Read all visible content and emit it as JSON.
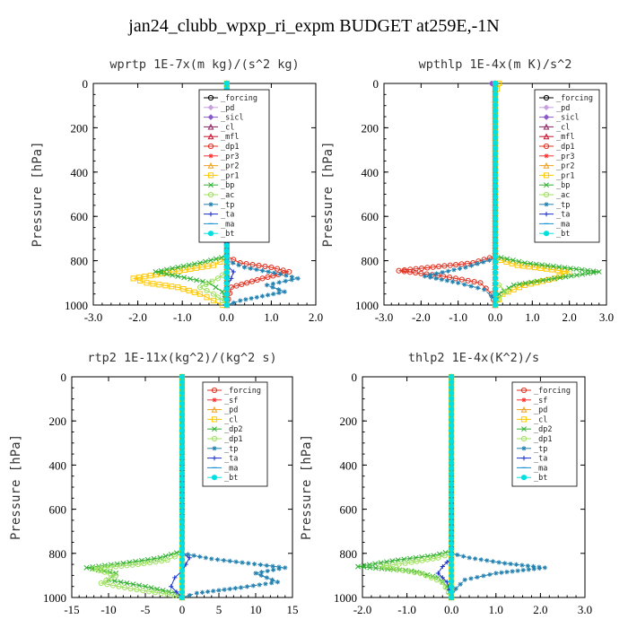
{
  "title": "jan24_clubb_wpxp_ri_expm  BUDGET at259E,-1N",
  "chart_data": [
    {
      "type": "line",
      "title": "wprtp  1E-7x(m kg)/(s^2 kg)",
      "ylabel": "Pressure [hPa]",
      "xlim": [
        -3,
        2
      ],
      "ylim": [
        1000,
        0
      ],
      "xticks": [
        "-3.0",
        "-2.0",
        "-1.0",
        "0.0",
        "1.0",
        "2.0"
      ],
      "yticks": [
        "0",
        "200",
        "400",
        "600",
        "800",
        "1000"
      ],
      "legend": "top-right",
      "series": [
        {
          "name": "_forcing",
          "color": "#000000",
          "marker": "circle",
          "x": [
            0,
            0,
            0,
            0,
            0,
            0,
            0,
            0,
            0,
            0
          ],
          "y": [
            0,
            100,
            200,
            300,
            400,
            500,
            600,
            700,
            800,
            1000
          ]
        },
        {
          "name": "_pd",
          "color": "#c8a0e0",
          "marker": "diamond",
          "x": [
            0,
            0
          ],
          "y": [
            0,
            1000
          ]
        },
        {
          "name": "_sicl",
          "color": "#8a5ac8",
          "marker": "diamond",
          "x": [
            0,
            0
          ],
          "y": [
            0,
            1000
          ]
        },
        {
          "name": "_cl",
          "color": "#8b2060",
          "marker": "triangle",
          "x": [
            0,
            0
          ],
          "y": [
            0,
            1000
          ]
        },
        {
          "name": "_mfl",
          "color": "#c8102e",
          "marker": "triangle",
          "x": [
            0,
            0
          ],
          "y": [
            0,
            1000
          ]
        },
        {
          "name": "_dp1",
          "color": "#e03020",
          "marker": "circle",
          "x": [
            0,
            0,
            0.3,
            1.0,
            1.4,
            0.8,
            0.1,
            0
          ],
          "y": [
            0,
            780,
            810,
            830,
            850,
            880,
            920,
            1000
          ]
        },
        {
          "name": "_pr3",
          "color": "#ff3030",
          "marker": "star",
          "x": [
            0,
            0
          ],
          "y": [
            0,
            1000
          ]
        },
        {
          "name": "_pr2",
          "color": "#f0a020",
          "marker": "triangle",
          "x": [
            0,
            0
          ],
          "y": [
            0,
            1000
          ]
        },
        {
          "name": "_pr1",
          "color": "#ffc800",
          "marker": "square",
          "x": [
            0,
            0,
            -0.3,
            -1.2,
            -2.1,
            -1.8,
            -1.1,
            -0.6,
            -0.3,
            -0.1
          ],
          "y": [
            0,
            790,
            820,
            850,
            880,
            900,
            920,
            950,
            980,
            1000
          ]
        },
        {
          "name": "_bp",
          "color": "#30b030",
          "marker": "cross",
          "x": [
            0,
            0,
            -0.6,
            -1.6,
            -1.1,
            -0.4,
            -0.1,
            0
          ],
          "y": [
            0,
            780,
            810,
            850,
            870,
            900,
            940,
            1000
          ]
        },
        {
          "name": "_ac",
          "color": "#a0e060",
          "marker": "circle",
          "x": [
            0,
            0,
            -0.2,
            -0.6,
            -0.3,
            -0.1,
            0
          ],
          "y": [
            0,
            850,
            880,
            920,
            950,
            980,
            1000
          ]
        },
        {
          "name": "_tp",
          "color": "#2080b0",
          "marker": "star",
          "x": [
            0,
            0,
            0.4,
            1.2,
            1.6,
            0.9,
            1.3,
            0.8,
            0.3,
            0
          ],
          "y": [
            0,
            800,
            830,
            860,
            880,
            910,
            940,
            960,
            980,
            1000
          ]
        },
        {
          "name": "_ta",
          "color": "#1a30c8",
          "marker": "plus",
          "x": [
            0,
            0,
            0.15,
            0.1,
            0,
            0
          ],
          "y": [
            0,
            820,
            850,
            880,
            920,
            1000
          ]
        },
        {
          "name": "_ma",
          "color": "#1890d0",
          "marker": "dash",
          "x": [
            0,
            0
          ],
          "y": [
            0,
            1000
          ]
        },
        {
          "name": "_bt",
          "color": "#00e0e0",
          "marker": "dot",
          "x": [
            0,
            0
          ],
          "y": [
            0,
            1000
          ]
        }
      ]
    },
    {
      "type": "line",
      "title": "wpthlp  1E-4x(m K)/s^2",
      "ylabel": "Pressure [hPa]",
      "xlim": [
        -3,
        3
      ],
      "ylim": [
        1000,
        0
      ],
      "xticks": [
        "-3.0",
        "-2.0",
        "-1.0",
        "0.0",
        "1.0",
        "2.0",
        "3.0"
      ],
      "yticks": [
        "0",
        "200",
        "400",
        "600",
        "800",
        "1000"
      ],
      "legend": "top-right",
      "series": [
        {
          "name": "_forcing",
          "color": "#000000",
          "marker": "circle",
          "x": [
            0,
            0
          ],
          "y": [
            0,
            1000
          ]
        },
        {
          "name": "_pd",
          "color": "#c8a0e0",
          "marker": "diamond",
          "x": [
            0,
            0
          ],
          "y": [
            0,
            1000
          ]
        },
        {
          "name": "_sicl",
          "color": "#8a5ac8",
          "marker": "diamond",
          "x": [
            -0.1,
            0,
            0
          ],
          "y": [
            0,
            40,
            1000
          ]
        },
        {
          "name": "_cl",
          "color": "#8b2060",
          "marker": "triangle",
          "x": [
            0,
            0
          ],
          "y": [
            0,
            1000
          ]
        },
        {
          "name": "_mfl",
          "color": "#c8102e",
          "marker": "triangle",
          "x": [
            0,
            0
          ],
          "y": [
            0,
            1000
          ]
        },
        {
          "name": "_dp1",
          "color": "#e03020",
          "marker": "circle",
          "x": [
            0,
            0,
            -0.6,
            -2.6,
            -1.4,
            -0.4,
            -0.1,
            0
          ],
          "y": [
            0,
            780,
            810,
            845,
            870,
            900,
            950,
            1000
          ]
        },
        {
          "name": "_pr3",
          "color": "#ff3030",
          "marker": "star",
          "x": [
            0,
            0
          ],
          "y": [
            0,
            1000
          ]
        },
        {
          "name": "_pr2",
          "color": "#f0a020",
          "marker": "triangle",
          "x": [
            0,
            0
          ],
          "y": [
            0,
            1000
          ]
        },
        {
          "name": "_pr1",
          "color": "#ffc800",
          "marker": "square",
          "x": [
            0.1,
            0,
            0,
            0.6,
            2.0,
            1.6,
            0.8,
            0.2,
            0
          ],
          "y": [
            0,
            50,
            790,
            820,
            850,
            880,
            910,
            950,
            1000
          ]
        },
        {
          "name": "_bp",
          "color": "#30b030",
          "marker": "cross",
          "x": [
            0,
            0,
            0.8,
            2.8,
            1.6,
            0.5,
            0.1,
            0
          ],
          "y": [
            0,
            780,
            810,
            850,
            880,
            910,
            950,
            1000
          ]
        },
        {
          "name": "_ac",
          "color": "#a0e060",
          "marker": "circle",
          "x": [
            0,
            0,
            0.1,
            0.3,
            0.1,
            0
          ],
          "y": [
            0,
            880,
            910,
            940,
            970,
            1000
          ]
        },
        {
          "name": "_tp",
          "color": "#2080b0",
          "marker": "star",
          "x": [
            0,
            0,
            -0.8,
            -1.9,
            -1.0,
            -0.3,
            -0.1,
            0
          ],
          "y": [
            0,
            790,
            830,
            870,
            900,
            930,
            960,
            1000
          ]
        },
        {
          "name": "_ta",
          "color": "#1a30c8",
          "marker": "plus",
          "x": [
            0,
            0
          ],
          "y": [
            0,
            1000
          ]
        },
        {
          "name": "_ma",
          "color": "#1890d0",
          "marker": "dash",
          "x": [
            0,
            0
          ],
          "y": [
            0,
            1000
          ]
        },
        {
          "name": "_bt",
          "color": "#00e0e0",
          "marker": "dot",
          "x": [
            0,
            0
          ],
          "y": [
            0,
            1000
          ]
        }
      ]
    },
    {
      "type": "line",
      "title": "rtp2  1E-11x(kg^2)/(kg^2 s)",
      "ylabel": "Pressure [hPa]",
      "xlim": [
        -15,
        15
      ],
      "ylim": [
        1000,
        0
      ],
      "xticks": [
        "-15",
        "-10",
        "-5",
        "0",
        "5",
        "10",
        "15"
      ],
      "yticks": [
        "0",
        "200",
        "400",
        "600",
        "800",
        "1000"
      ],
      "legend": "top-right",
      "series": [
        {
          "name": "_forcing",
          "color": "#e03020",
          "marker": "circle",
          "x": [
            0,
            0,
            0,
            0,
            0,
            0,
            0,
            0,
            0,
            0,
            0,
            0,
            0,
            0,
            0,
            0,
            0,
            0,
            0,
            0,
            0
          ],
          "y": [
            0,
            50,
            100,
            150,
            200,
            250,
            300,
            350,
            400,
            450,
            500,
            550,
            600,
            650,
            700,
            750,
            800,
            850,
            900,
            950,
            1000
          ]
        },
        {
          "name": "_sf",
          "color": "#ff3030",
          "marker": "star",
          "x": [
            0,
            0
          ],
          "y": [
            0,
            1000
          ]
        },
        {
          "name": "_pd",
          "color": "#f0a020",
          "marker": "triangle",
          "x": [
            0,
            0
          ],
          "y": [
            0,
            1000
          ]
        },
        {
          "name": "_cl",
          "color": "#ffc800",
          "marker": "square",
          "x": [
            0,
            0
          ],
          "y": [
            0,
            1000
          ]
        },
        {
          "name": "_dp2",
          "color": "#30b030",
          "marker": "cross",
          "x": [
            0,
            0,
            -3,
            -8,
            -13,
            -9,
            -10,
            -5,
            -1,
            0
          ],
          "y": [
            0,
            790,
            820,
            845,
            865,
            890,
            920,
            950,
            980,
            1000
          ]
        },
        {
          "name": "_dp1",
          "color": "#a0e060",
          "marker": "circle",
          "x": [
            0,
            0,
            -2,
            -6,
            -12,
            -9,
            -11,
            -7,
            -2,
            0
          ],
          "y": [
            0,
            800,
            830,
            850,
            870,
            900,
            935,
            960,
            985,
            1000
          ]
        },
        {
          "name": "_tp",
          "color": "#2080b0",
          "marker": "star",
          "x": [
            0,
            0,
            4,
            9,
            14,
            10,
            13,
            8,
            2,
            0
          ],
          "y": [
            0,
            800,
            825,
            845,
            865,
            890,
            930,
            955,
            980,
            1000
          ]
        },
        {
          "name": "_ta",
          "color": "#1a30c8",
          "marker": "plus",
          "x": [
            0,
            0,
            1,
            0.5,
            0,
            -1,
            -1.5,
            0
          ],
          "y": [
            0,
            800,
            820,
            850,
            880,
            910,
            950,
            1000
          ]
        },
        {
          "name": "_ma",
          "color": "#1890d0",
          "marker": "dash",
          "x": [
            0,
            0
          ],
          "y": [
            0,
            1000
          ]
        },
        {
          "name": "_bt",
          "color": "#00e0e0",
          "marker": "dot",
          "x": [
            0,
            0
          ],
          "y": [
            0,
            1000
          ]
        }
      ]
    },
    {
      "type": "line",
      "title": "thlp2  1E-4x(K^2)/s",
      "ylabel": "Pressure [hPa]",
      "xlim": [
        -2,
        3
      ],
      "ylim": [
        1000,
        0
      ],
      "xticks": [
        "-2.0",
        "-1.0",
        "0.0",
        "1.0",
        "2.0",
        "3.0"
      ],
      "yticks": [
        "0",
        "200",
        "400",
        "600",
        "800",
        "1000"
      ],
      "legend": "top-right",
      "series": [
        {
          "name": "_forcing",
          "color": "#e03020",
          "marker": "circle",
          "x": [
            0,
            0,
            0,
            0,
            0,
            0,
            0,
            0,
            0,
            0,
            0,
            0,
            0,
            0,
            0,
            0,
            0,
            0,
            0,
            0,
            0
          ],
          "y": [
            0,
            50,
            100,
            150,
            200,
            250,
            300,
            350,
            400,
            450,
            500,
            550,
            600,
            650,
            700,
            750,
            800,
            850,
            900,
            950,
            1000
          ]
        },
        {
          "name": "_sf",
          "color": "#ff3030",
          "marker": "star",
          "x": [
            0,
            0
          ],
          "y": [
            0,
            1000
          ]
        },
        {
          "name": "_pd",
          "color": "#f0a020",
          "marker": "triangle",
          "x": [
            0,
            0
          ],
          "y": [
            0,
            1000
          ]
        },
        {
          "name": "_cl",
          "color": "#ffc800",
          "marker": "square",
          "x": [
            0,
            0
          ],
          "y": [
            0,
            1000
          ]
        },
        {
          "name": "_dp2",
          "color": "#30b030",
          "marker": "cross",
          "x": [
            0,
            0,
            -0.4,
            -1.2,
            -2.1,
            -0.9,
            -0.3,
            -0.1,
            0
          ],
          "y": [
            0,
            790,
            810,
            830,
            860,
            880,
            910,
            950,
            1000
          ]
        },
        {
          "name": "_dp1",
          "color": "#a0e060",
          "marker": "circle",
          "x": [
            0,
            0,
            -0.3,
            -0.9,
            -1.6,
            -0.7,
            -0.2,
            0
          ],
          "y": [
            0,
            800,
            820,
            840,
            860,
            890,
            930,
            1000
          ]
        },
        {
          "name": "_tp",
          "color": "#2080b0",
          "marker": "star",
          "x": [
            0,
            0,
            0.4,
            1.2,
            2.1,
            1.0,
            0.3,
            0.1,
            0
          ],
          "y": [
            0,
            800,
            820,
            845,
            865,
            890,
            920,
            960,
            1000
          ]
        },
        {
          "name": "_ta",
          "color": "#1a30c8",
          "marker": "plus",
          "x": [
            0,
            0,
            -0.2,
            -0.3,
            -0.1,
            0
          ],
          "y": [
            0,
            820,
            860,
            890,
            930,
            1000
          ]
        },
        {
          "name": "_ma",
          "color": "#1890d0",
          "marker": "dash",
          "x": [
            0,
            0
          ],
          "y": [
            0,
            1000
          ]
        },
        {
          "name": "_bt",
          "color": "#00e0e0",
          "marker": "dot",
          "x": [
            0,
            0
          ],
          "y": [
            0,
            1000
          ]
        }
      ]
    }
  ]
}
